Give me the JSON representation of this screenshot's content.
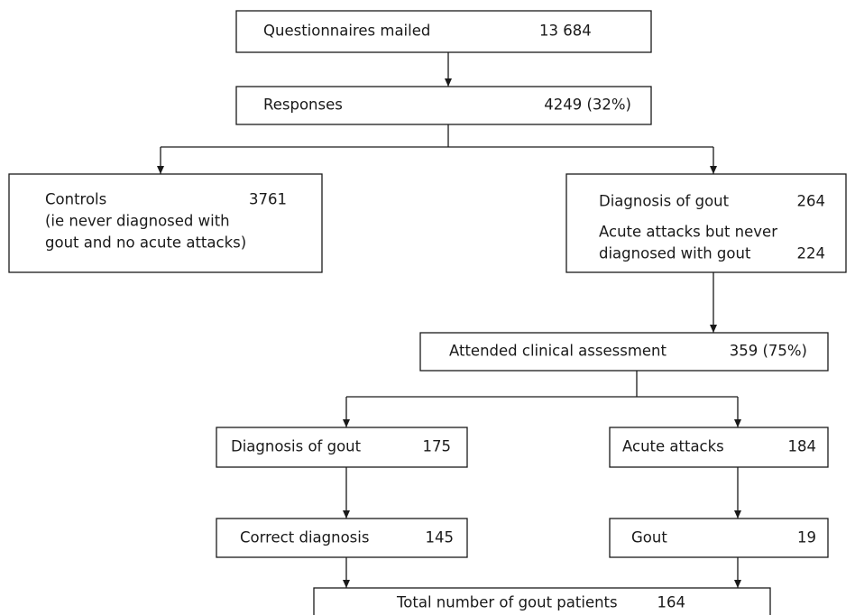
{
  "nodes": [
    {
      "label": "Questionnaires mailed",
      "value": "13 684"
    },
    {
      "label": "Responses",
      "value": "4249 (32%)"
    },
    {
      "label": "Controls",
      "value": "3761",
      "note": [
        "(ie never diagnosed with",
        "gout and no acute attacks)"
      ]
    },
    {
      "items": [
        {
          "label": [
            "Diagnosis of gout"
          ],
          "value": "264"
        },
        {
          "label": [
            "Acute attacks but never",
            "diagnosed with gout"
          ],
          "value": "224"
        }
      ]
    },
    {
      "label": "Attended clinical assessment",
      "value": "359 (75%)"
    },
    {
      "label": "Diagnosis of gout",
      "value": "175"
    },
    {
      "label": "Acute attacks",
      "value": "184"
    },
    {
      "label": "Correct diagnosis",
      "value": "145"
    },
    {
      "label": "Gout",
      "value": "19"
    },
    {
      "label": "Total number of gout patients",
      "value": "164"
    }
  ]
}
